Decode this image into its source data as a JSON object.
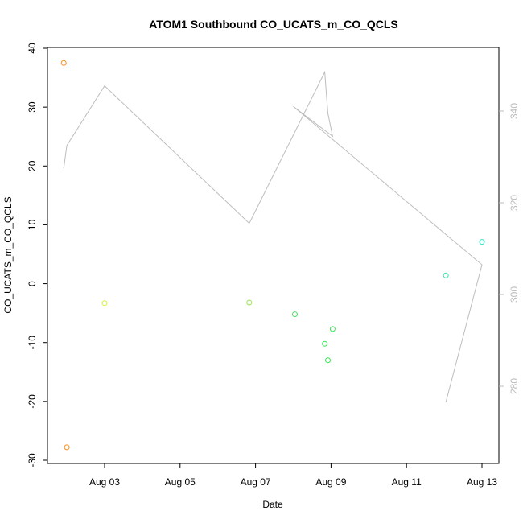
{
  "chart_data": {
    "type": "scatter",
    "title": "ATOM1 Southbound CO_UCATS_m_CO_QCLS",
    "xlabel": "Date",
    "ylabel": "CO_UCATS_m_CO_QCLS",
    "x_axis": {
      "ticks": [
        {
          "label": "Aug 03",
          "value": "2016-08-03"
        },
        {
          "label": "Aug 05",
          "value": "2016-08-05"
        },
        {
          "label": "Aug 07",
          "value": "2016-08-07"
        },
        {
          "label": "Aug 09",
          "value": "2016-08-09"
        },
        {
          "label": "Aug 11",
          "value": "2016-08-11"
        },
        {
          "label": "Aug 13",
          "value": "2016-08-13"
        }
      ],
      "range": [
        "2016-08-01T14:30",
        "2016-08-13T11:00"
      ]
    },
    "y_axis": {
      "range": [
        -30.5,
        40
      ],
      "ticks": [
        -30,
        -20,
        -10,
        0,
        10,
        20,
        30,
        40
      ]
    },
    "y2_axis": {
      "range": [
        262,
        350
      ],
      "ticks": [
        280,
        300,
        320,
        340
      ],
      "color": "#bdbdbd"
    },
    "points": [
      {
        "x": "2016-08-01T22:00",
        "y": 37.5,
        "color": "#ff8c1a"
      },
      {
        "x": "2016-08-02T00:00",
        "y": -27.8,
        "color": "#ff8c1a"
      },
      {
        "x": "2016-08-03T00:00",
        "y": -3.3,
        "color": "#d4f03a"
      },
      {
        "x": "2016-08-06T20:00",
        "y": -3.2,
        "color": "#9be65a"
      },
      {
        "x": "2016-08-08T01:00",
        "y": -5.2,
        "color": "#55e066"
      },
      {
        "x": "2016-08-08T20:00",
        "y": -10.2,
        "color": "#33e655"
      },
      {
        "x": "2016-08-08T22:00",
        "y": -13.0,
        "color": "#33e655"
      },
      {
        "x": "2016-08-09T01:00",
        "y": -7.7,
        "color": "#33e655"
      },
      {
        "x": "2016-08-12T01:00",
        "y": 1.4,
        "color": "#33e0a0"
      },
      {
        "x": "2016-08-13T00:00",
        "y": 7.1,
        "color": "#33e8c8"
      }
    ],
    "secondary_line": {
      "color": "#bdbdbd",
      "points": [
        {
          "x": "2016-08-01T22:00",
          "y2": 327.5
        },
        {
          "x": "2016-08-02T00:00",
          "y2": 332.5
        },
        {
          "x": "2016-08-03T00:00",
          "y2": 345.5
        },
        {
          "x": "2016-08-06T20:00",
          "y2": 315.5
        },
        {
          "x": "2016-08-08T20:00",
          "y2": 348.5
        },
        {
          "x": "2016-08-08T22:00",
          "y2": 339.5
        },
        {
          "x": "2016-08-09T01:00",
          "y2": 334.5
        },
        {
          "x": "2016-08-08T00:00",
          "y2": 341.0
        },
        {
          "x": "2016-08-13T00:00",
          "y2": 306.5
        },
        {
          "x": "2016-08-12T01:00",
          "y2": 276.5
        }
      ]
    },
    "grid": false,
    "legend": "none"
  }
}
